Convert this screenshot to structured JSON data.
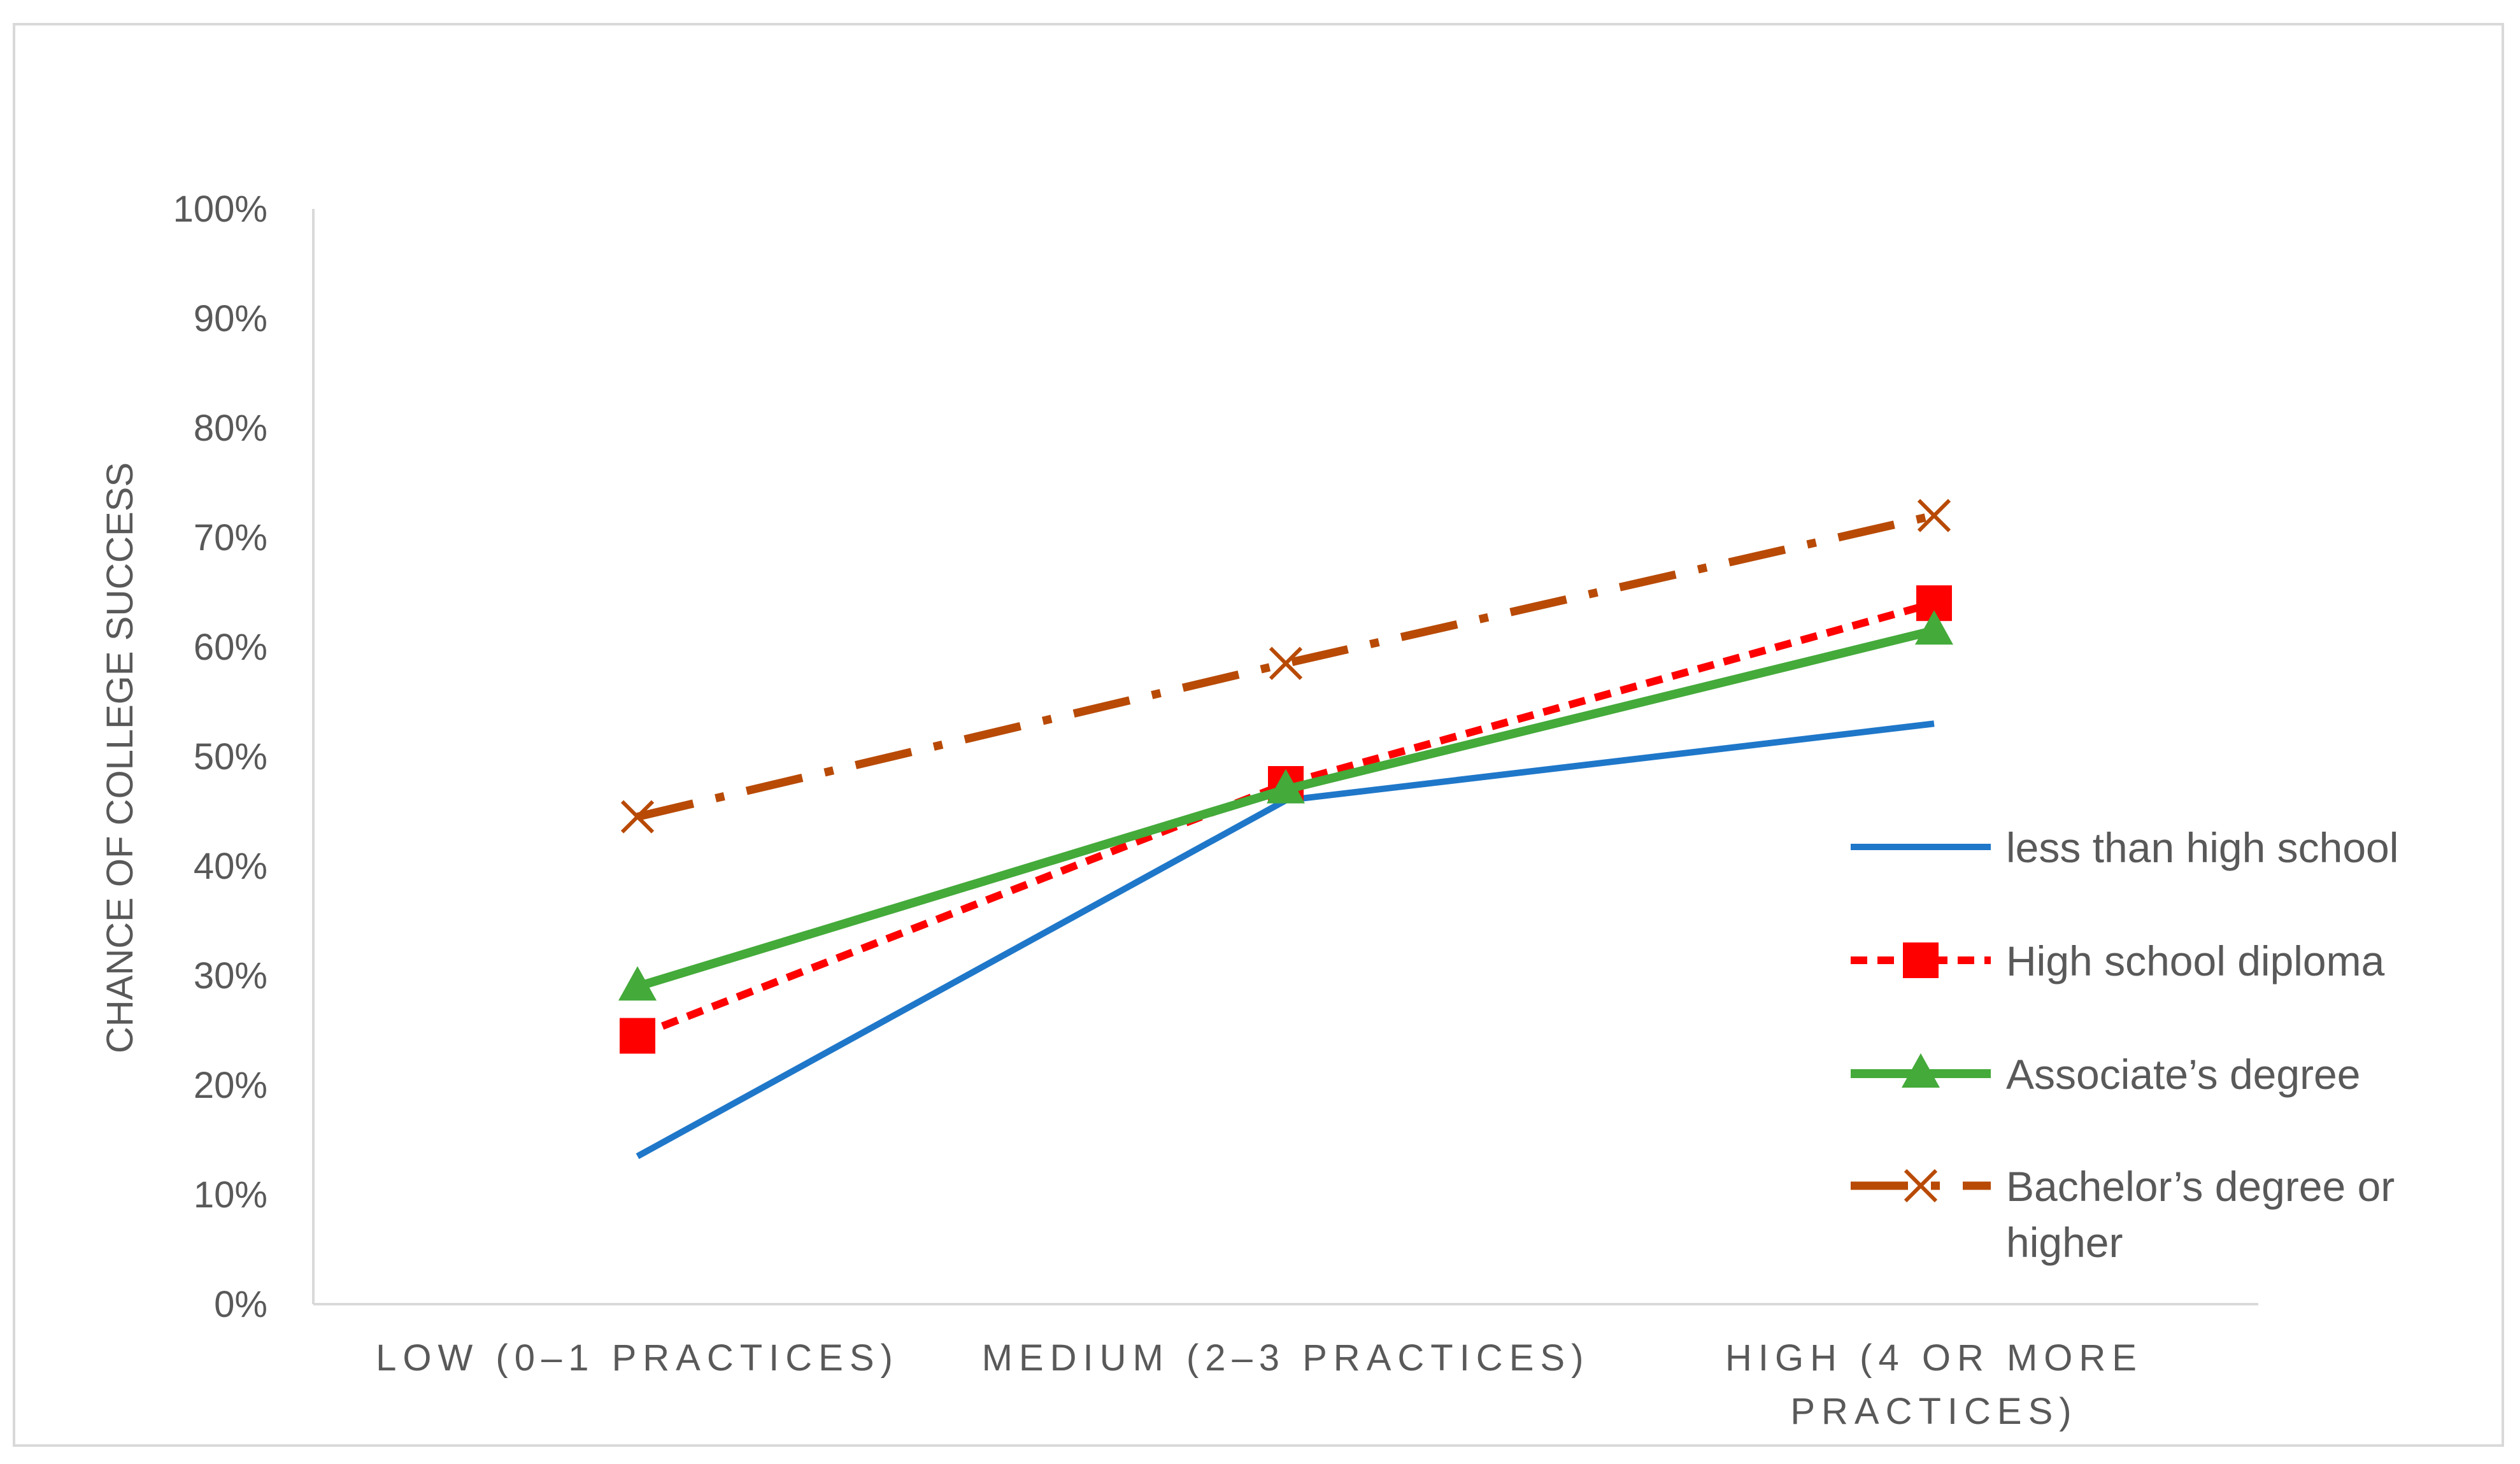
{
  "chart_data": {
    "type": "line",
    "title": "",
    "xlabel": "",
    "ylabel": "CHANCE OF COLLEGE SUCCESS",
    "ylim": [
      0,
      100
    ],
    "y_ticks": [
      "0%",
      "10%",
      "20%",
      "30%",
      "40%",
      "50%",
      "60%",
      "70%",
      "80%",
      "90%",
      "100%"
    ],
    "categories": [
      [
        "LOW (0–1 PRACTICES)"
      ],
      [
        "MEDIUM (2–3 PRACTICES)"
      ],
      [
        "HIGH (4 OR MORE",
        "PRACTICES)"
      ]
    ],
    "grid": false,
    "legend_position": "right",
    "series": [
      {
        "name": "less than high school",
        "values": [
          13.5,
          46,
          53
        ],
        "color": "#1f77c9",
        "style": "solid",
        "marker": "none"
      },
      {
        "name": "High school diploma",
        "values": [
          24.5,
          47.5,
          64
        ],
        "color": "#ff0000",
        "style": "dashed",
        "marker": "square"
      },
      {
        "name": "Associate’s degree",
        "values": [
          29,
          47,
          61.5
        ],
        "color": "#44aa3a",
        "style": "solid",
        "marker": "triangle"
      },
      {
        "name": [
          "Bachelor’s degree or",
          "higher"
        ],
        "values": [
          44.5,
          58.5,
          72
        ],
        "color": "#b84a06",
        "style": "dash-dot",
        "marker": "x"
      }
    ]
  }
}
